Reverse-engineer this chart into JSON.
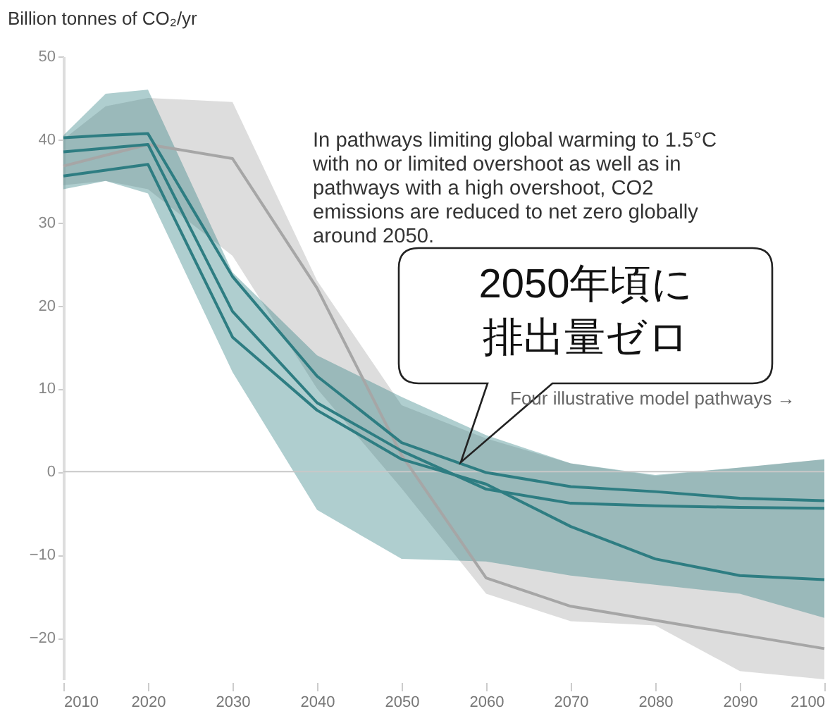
{
  "chart_data": {
    "type": "line",
    "ylabel": "Billion tonnes of CO₂/yr",
    "xlim": [
      2010,
      2100
    ],
    "xticks": [
      2010,
      2020,
      2030,
      2040,
      2050,
      2060,
      2070,
      2080,
      2090,
      2100
    ],
    "ylim": [
      -25,
      50
    ],
    "yticks": [
      -20,
      -10,
      0,
      10,
      20,
      30,
      40,
      50
    ],
    "series": [
      {
        "type": "line",
        "color": "#a6a6a6",
        "x": [
          2010,
          2015,
          2020,
          2030,
          2040,
          2050,
          2060,
          2070,
          2080,
          2090,
          2100
        ],
        "values": [
          36.8,
          38.1,
          39.4,
          37.7,
          22.1,
          2,
          -12.8,
          -16.2,
          -17.9,
          -19.6,
          -21.3
        ],
        "lower": [
          34.5,
          35,
          34,
          26,
          10,
          -2,
          -14.7,
          -18,
          -18.5,
          -24,
          -25
        ],
        "upper": [
          40,
          44,
          45,
          44.5,
          23,
          8,
          4,
          1,
          -0.5,
          0.5,
          1.5
        ]
      },
      {
        "type": "line",
        "color": "#2e7d82",
        "x": [
          2010,
          2015,
          2020,
          2030,
          2040,
          2050,
          2060,
          2070,
          2080,
          2090,
          2100
        ],
        "values": [
          40.2,
          40.5,
          40.7,
          23.5,
          11.5,
          3.5,
          -0.1,
          -1.8,
          -2.4,
          -3.2,
          -3.5
        ],
        "lower": [
          34,
          35,
          33.5,
          12,
          -4.6,
          -10.5,
          -10.8,
          -12.5,
          -13.6,
          -14.7,
          -17.6
        ],
        "upper": [
          40.5,
          45.5,
          46,
          24,
          14,
          9,
          4.4,
          1,
          -0.4,
          0.5,
          1.5
        ]
      },
      {
        "type": "line",
        "color": "#2e7d82",
        "x": [
          2010,
          2020,
          2030,
          2040,
          2050,
          2060,
          2070,
          2080,
          2090,
          2100
        ],
        "values": [
          38.5,
          39.4,
          19.3,
          8.3,
          2.5,
          -2.1,
          -3.8,
          -4.1,
          -4.3,
          -4.4
        ]
      },
      {
        "type": "line",
        "color": "#2e7d82",
        "x": [
          2010,
          2020,
          2030,
          2040,
          2050,
          2060,
          2070,
          2080,
          2090,
          2100
        ],
        "values": [
          35.6,
          37,
          16.2,
          7.4,
          1.5,
          -1.5,
          -6.6,
          -10.5,
          -12.5,
          -13
        ]
      }
    ],
    "ref_lines": [
      {
        "axis": "y",
        "value": 0,
        "color": "#c8c8c8"
      }
    ],
    "annotations": [
      "In pathways limiting global warming to 1.5°C with no or limited overshoot as well as in pathways with a high overshoot, CO2 emissions are reduced to net zero globally around 2050.",
      "2050年頃に排出量ゼロ",
      "Four illustrative model pathways →"
    ],
    "grid": false,
    "marker": "none",
    "line_style": "solid"
  }
}
